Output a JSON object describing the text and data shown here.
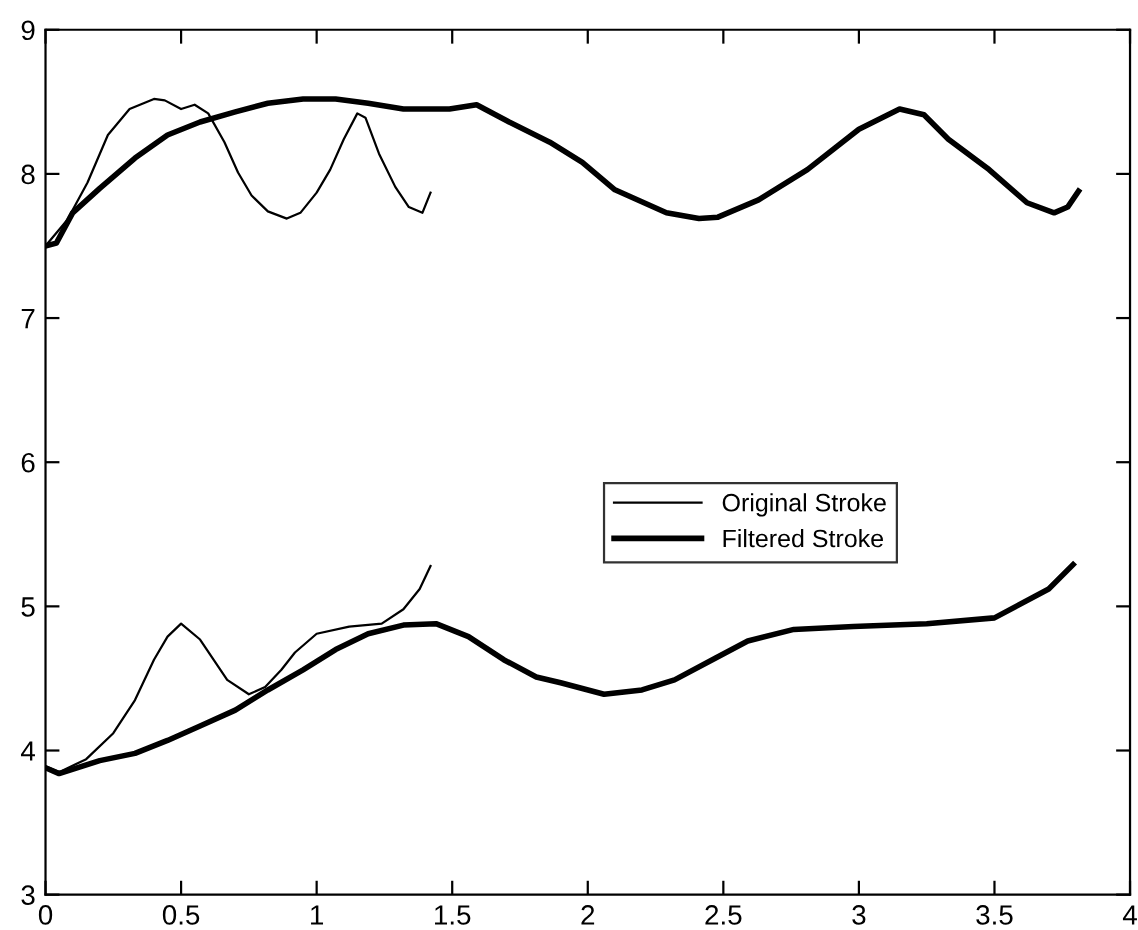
{
  "chart_data": {
    "type": "line",
    "xlim": [
      0,
      4
    ],
    "ylim": [
      3,
      9
    ],
    "xticks": [
      0,
      0.5,
      1,
      1.5,
      2,
      2.5,
      3,
      3.5,
      4
    ],
    "yticks": [
      3,
      4,
      5,
      6,
      7,
      8,
      9
    ],
    "grid": false,
    "legend": "center",
    "marker": "none",
    "line_style": "solid",
    "series": [
      {
        "name": "Original Stroke",
        "color": "#000000",
        "x": [
          0,
          0.08,
          0.155,
          0.23,
          0.31,
          0.4,
          0.44,
          0.5,
          0.55,
          0.6,
          0.66,
          0.71,
          0.76,
          0.82,
          0.89,
          0.94,
          1.0,
          1.05,
          1.1,
          1.15,
          1.18,
          1.23,
          1.29,
          1.34,
          1.39,
          1.42
        ],
        "values": [
          7.5,
          7.68,
          7.94,
          8.27,
          8.45,
          8.52,
          8.51,
          8.45,
          8.48,
          8.42,
          8.22,
          8.01,
          7.85,
          7.74,
          7.69,
          7.73,
          7.87,
          8.03,
          8.24,
          8.42,
          8.39,
          8.14,
          7.91,
          7.77,
          7.73,
          7.87
        ]
      },
      {
        "color": "#000000",
        "x": [
          0,
          0.05,
          0.15,
          0.25,
          0.33,
          0.4,
          0.45,
          0.5,
          0.57,
          0.67,
          0.75,
          0.81,
          0.87,
          0.92,
          1.0,
          1.12,
          1.24,
          1.32,
          1.38,
          1.42
        ],
        "values": [
          3.89,
          3.85,
          3.94,
          4.12,
          4.35,
          4.63,
          4.79,
          4.88,
          4.77,
          4.49,
          4.39,
          4.44,
          4.56,
          4.68,
          4.81,
          4.86,
          4.88,
          4.98,
          5.12,
          5.28
        ]
      },
      {
        "name": "Filtered Stroke",
        "color": "#000000",
        "x": [
          0,
          0.04,
          0.1,
          0.2,
          0.33,
          0.45,
          0.57,
          0.7,
          0.82,
          0.95,
          1.07,
          1.19,
          1.32,
          1.49,
          1.59,
          1.71,
          1.86,
          1.98,
          2.1,
          2.29,
          2.41,
          2.48,
          2.63,
          2.81,
          3.0,
          3.15,
          3.24,
          3.33,
          3.48,
          3.62,
          3.72,
          3.77,
          3.81
        ],
        "values": [
          7.5,
          7.52,
          7.73,
          7.9,
          8.11,
          8.27,
          8.36,
          8.43,
          8.49,
          8.52,
          8.52,
          8.49,
          8.45,
          8.45,
          8.48,
          8.36,
          8.22,
          8.08,
          7.89,
          7.73,
          7.69,
          7.7,
          7.82,
          8.03,
          8.31,
          8.45,
          8.41,
          8.24,
          8.03,
          7.8,
          7.73,
          7.77,
          7.88
        ]
      },
      {
        "color": "#000000",
        "x": [
          0,
          0.05,
          0.2,
          0.33,
          0.45,
          0.57,
          0.7,
          0.82,
          0.95,
          1.07,
          1.19,
          1.32,
          1.44,
          1.56,
          1.69,
          1.81,
          1.9,
          2.06,
          2.2,
          2.32,
          2.47,
          2.59,
          2.76,
          2.98,
          3.25,
          3.5,
          3.7,
          3.79
        ],
        "values": [
          3.88,
          3.84,
          3.93,
          3.98,
          4.07,
          4.17,
          4.28,
          4.42,
          4.56,
          4.7,
          4.81,
          4.87,
          4.88,
          4.79,
          4.63,
          4.51,
          4.47,
          4.39,
          4.42,
          4.49,
          4.64,
          4.76,
          4.84,
          4.86,
          4.88,
          4.92,
          5.12,
          5.29
        ]
      }
    ]
  }
}
